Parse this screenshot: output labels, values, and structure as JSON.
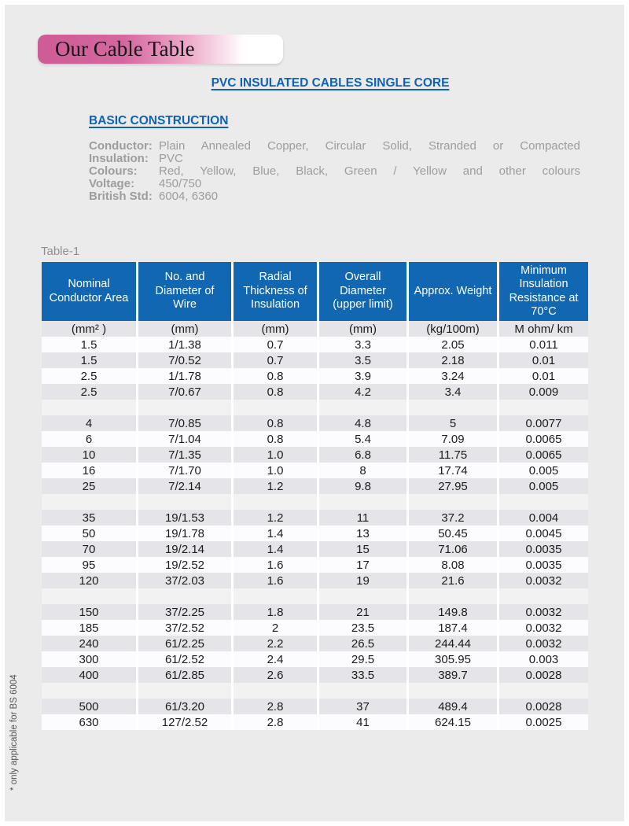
{
  "banner": {
    "title": "Our Cable Table"
  },
  "header": {
    "title": "PVC INSULATED CABLES SINGLE CORE",
    "section": "BASIC CONSTRUCTION"
  },
  "specs": [
    {
      "label": "Conductor:",
      "value": "Plain Annealed Copper, Circular Solid, Stranded or Compacted"
    },
    {
      "label": "Insulation:",
      "value": "PVC"
    },
    {
      "label": "Colours:",
      "value": "Red, Yellow, Blue, Black, Green / Yellow and other colours"
    },
    {
      "label": "Voltage:",
      "value": "450/750"
    },
    {
      "label": "British Std:",
      "value": "6004, 6360"
    }
  ],
  "table": {
    "label": "Table-1",
    "columns": [
      "Nominal Conductor Area",
      "No. and Diameter of Wire",
      "Radial Thickness of Insulation",
      "Overall Diameter (upper limit)",
      "Approx. Weight",
      "Minimum Insulation Resistance at 70°C"
    ],
    "units": [
      "(mm² )",
      "(mm)",
      "(mm)",
      "(mm)",
      "(kg/100m)",
      "M ohm/ km"
    ],
    "rows": [
      [
        "1.5",
        "1/1.38",
        "0.7",
        "3.3",
        "2.05",
        "0.011"
      ],
      [
        "1.5",
        "7/0.52",
        "0.7",
        "3.5",
        "2.18",
        "0.01"
      ],
      [
        "2.5",
        "1/1.78",
        "0.8",
        "3.9",
        "3.24",
        "0.01"
      ],
      [
        "2.5",
        "7/0.67",
        "0.8",
        "4.2",
        "3.4",
        "0.009"
      ],
      [],
      [
        "4",
        "7/0.85",
        "0.8",
        "4.8",
        "5",
        "0.0077"
      ],
      [
        "6",
        "7/1.04",
        "0.8",
        "5.4",
        "7.09",
        "0.0065"
      ],
      [
        "10",
        "7/1.35",
        "1.0",
        "6.8",
        "11.75",
        "0.0065"
      ],
      [
        "16",
        "7/1.70",
        "1.0",
        "8",
        "17.74",
        "0.005"
      ],
      [
        "25",
        "7/2.14",
        "1.2",
        "9.8",
        "27.95",
        "0.005"
      ],
      [],
      [
        "35",
        "19/1.53",
        "1.2",
        "11",
        "37.2",
        "0.004"
      ],
      [
        "50",
        "19/1.78",
        "1.4",
        "13",
        "50.45",
        "0.0045"
      ],
      [
        "70",
        "19/2.14",
        "1.4",
        "15",
        "71.06",
        "0.0035"
      ],
      [
        "95",
        "19/2.52",
        "1.6",
        "17",
        "8.08",
        "0.0035"
      ],
      [
        "120",
        "37/2.03",
        "1.6",
        "19",
        "21.6",
        "0.0032"
      ],
      [],
      [
        "150",
        "37/2.25",
        "1.8",
        "21",
        "149.8",
        "0.0032"
      ],
      [
        "185",
        "37/2.52",
        "2",
        "23.5",
        "187.4",
        "0.0032"
      ],
      [
        "240",
        "61/2.25",
        "2.2",
        "26.5",
        "244.44",
        "0.0032"
      ],
      [
        "300",
        "61/2.52",
        "2.4",
        "29.5",
        "305.95",
        "0.003"
      ],
      [
        "400",
        "61/2.85",
        "2.6",
        "33.5",
        "389.7",
        "0.0028"
      ],
      [],
      [
        "500",
        "61/3.20",
        "2.8",
        "37",
        "489.4",
        "0.0028"
      ],
      [
        "630",
        "127/2.52",
        "2.8",
        "41",
        "624.15",
        "0.0025"
      ]
    ]
  },
  "footnote": "* only applicable for BS 6004",
  "colors": {
    "title_blue": "#1062b5",
    "header_blue": "#1167b2",
    "banner_pink": "#ce5b95",
    "spec_gray": "#9d9d9d"
  }
}
